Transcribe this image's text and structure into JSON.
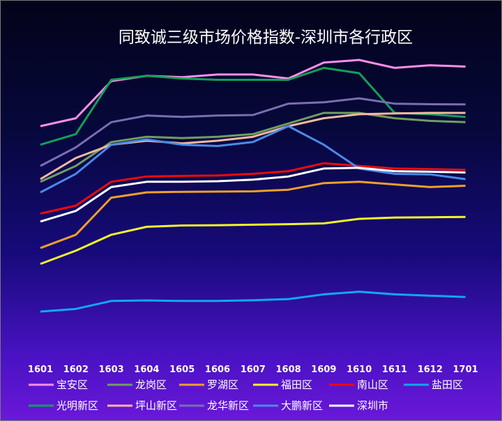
{
  "chart_data": {
    "type": "line",
    "title": "同致诚三级市场价格指数-深圳市各行政区",
    "categories": [
      "1601",
      "1602",
      "1603",
      "1604",
      "1605",
      "1606",
      "1607",
      "1608",
      "1609",
      "1610",
      "1611",
      "1612",
      "1701"
    ],
    "xlabel": "",
    "ylabel": "",
    "grid": false,
    "legend_position": "bottom",
    "series": [
      {
        "name": "宝安区",
        "color": "#ff8ee8",
        "values": [
          100,
          103,
          117,
          119,
          118.5,
          119.5,
          119.5,
          118,
          124,
          125,
          122,
          123,
          122.5
        ]
      },
      {
        "name": "龙岗区",
        "color": "#6f9f5f",
        "values": [
          79,
          85,
          94,
          96,
          95.5,
          96,
          97,
          101,
          105,
          105,
          103,
          102,
          101.5
        ]
      },
      {
        "name": "罗湖区",
        "color": "#f0a028",
        "values": [
          54,
          59,
          73,
          75,
          75.2,
          75.3,
          75.4,
          76,
          78.5,
          79,
          78,
          77,
          77.5
        ]
      },
      {
        "name": "福田区",
        "color": "#f5f528",
        "values": [
          48,
          53,
          59,
          62,
          62.5,
          62.6,
          62.8,
          63,
          63.3,
          65,
          65.5,
          65.6,
          65.7
        ]
      },
      {
        "name": "南山区",
        "color": "#ee0a0a",
        "values": [
          67,
          70,
          79,
          81,
          81.2,
          81.4,
          82,
          83,
          86,
          85,
          84,
          83.8,
          83.5
        ]
      },
      {
        "name": "盐田区",
        "color": "#10a8f0",
        "values": [
          30,
          31,
          34,
          34.2,
          34,
          34,
          34.3,
          34.7,
          36.5,
          37.5,
          36.5,
          36,
          35.5
        ]
      },
      {
        "name": "光明新区",
        "color": "#12a058",
        "values": [
          93,
          97,
          117.5,
          119,
          118,
          117.5,
          117.5,
          117.5,
          122,
          120,
          105,
          104.5,
          103.5
        ]
      },
      {
        "name": "坪山新区",
        "color": "#f8b8a0",
        "values": [
          80,
          88,
          93,
          94.5,
          93.5,
          94.5,
          96,
          100,
          103,
          104.5,
          104.8,
          105,
          105
        ]
      },
      {
        "name": "龙华新区",
        "color": "#7a6eb0",
        "values": [
          85,
          92,
          101.5,
          104,
          103.5,
          104,
          104.2,
          108.5,
          109,
          110.5,
          108.5,
          108.3,
          108.2
        ]
      },
      {
        "name": "大鹏新区",
        "color": "#4a8ae8",
        "values": [
          75,
          82,
          93,
          95,
          93,
          92.5,
          94,
          100,
          93,
          84,
          82,
          81.8,
          80
        ]
      },
      {
        "name": "深圳市",
        "color": "#ffffff",
        "values": [
          64,
          68,
          77,
          79,
          79,
          79.2,
          79.8,
          81,
          84,
          84.3,
          83,
          82.8,
          82.5
        ]
      }
    ]
  }
}
